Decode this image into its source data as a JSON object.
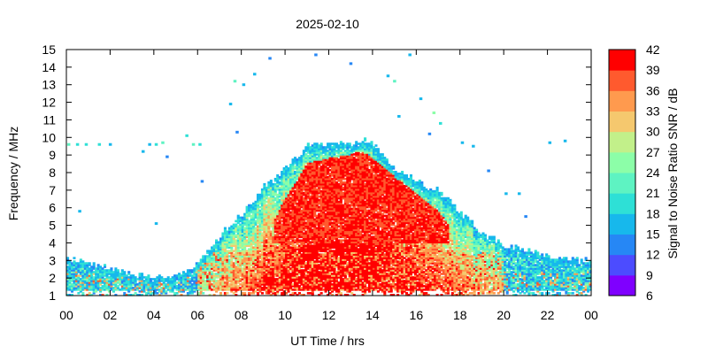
{
  "chart_data": {
    "type": "heatmap",
    "title": "2025-02-10",
    "xlabel": "UT Time / hrs",
    "ylabel": "Frequency / MHz",
    "x_ticks": [
      "00",
      "02",
      "04",
      "06",
      "08",
      "10",
      "12",
      "14",
      "16",
      "18",
      "20",
      "22",
      "00"
    ],
    "xlim": [
      0,
      24
    ],
    "y_ticks": [
      1,
      2,
      3,
      4,
      5,
      6,
      7,
      8,
      9,
      10,
      11,
      12,
      13,
      14,
      15
    ],
    "ylim": [
      1,
      15
    ],
    "colorbar": {
      "label": "Signal to Noise Ratio SNR / dB",
      "ticks": [
        6,
        9,
        12,
        15,
        18,
        21,
        24,
        27,
        30,
        33,
        36,
        39,
        42
      ],
      "range": [
        6,
        42
      ],
      "colors": [
        "#7f00ff",
        "#4c4cff",
        "#2687f5",
        "#17b8ec",
        "#2ee0d6",
        "#5ef3c2",
        "#8cfea8",
        "#c2f08a",
        "#f5c86e",
        "#ff9a4e",
        "#ff5a2e",
        "#ff0000"
      ]
    },
    "envelope_upper_mhz": [
      [
        0.0,
        3.1
      ],
      [
        1.0,
        2.8
      ],
      [
        2.0,
        2.5
      ],
      [
        3.0,
        2.2
      ],
      [
        4.0,
        2.0
      ],
      [
        5.0,
        2.0
      ],
      [
        5.5,
        2.3
      ],
      [
        6.0,
        2.8
      ],
      [
        6.5,
        3.6
      ],
      [
        7.0,
        4.3
      ],
      [
        7.5,
        5.0
      ],
      [
        8.0,
        5.6
      ],
      [
        8.5,
        6.2
      ],
      [
        9.0,
        7.1
      ],
      [
        9.5,
        7.6
      ],
      [
        10.0,
        8.2
      ],
      [
        10.5,
        8.8
      ],
      [
        11.0,
        9.5
      ],
      [
        12.0,
        9.6
      ],
      [
        13.0,
        9.5
      ],
      [
        13.5,
        9.8
      ],
      [
        14.0,
        9.6
      ],
      [
        14.5,
        8.9
      ],
      [
        15.0,
        8.2
      ],
      [
        15.5,
        7.9
      ],
      [
        16.0,
        7.6
      ],
      [
        16.5,
        7.2
      ],
      [
        17.0,
        7.0
      ],
      [
        17.5,
        6.4
      ],
      [
        18.0,
        5.7
      ],
      [
        18.5,
        5.2
      ],
      [
        19.0,
        4.5
      ],
      [
        19.5,
        4.2
      ],
      [
        20.0,
        3.8
      ],
      [
        21.0,
        3.6
      ],
      [
        22.0,
        3.2
      ],
      [
        23.0,
        3.0
      ],
      [
        24.0,
        3.0
      ]
    ],
    "core_region_upper_mhz": [
      [
        9.5,
        5.2
      ],
      [
        10.0,
        6.5
      ],
      [
        10.5,
        7.5
      ],
      [
        11.0,
        8.5
      ],
      [
        12.0,
        8.8
      ],
      [
        13.0,
        9.0
      ],
      [
        13.5,
        9.2
      ],
      [
        14.0,
        8.8
      ],
      [
        15.0,
        7.8
      ],
      [
        16.0,
        6.8
      ],
      [
        17.0,
        5.8
      ],
      [
        17.5,
        5.0
      ]
    ],
    "sporadic_points": [
      [
        0.1,
        9.6,
        21
      ],
      [
        0.5,
        9.6,
        20
      ],
      [
        0.9,
        9.6,
        19
      ],
      [
        1.5,
        9.6,
        18
      ],
      [
        2.0,
        9.6,
        17
      ],
      [
        3.8,
        9.6,
        17
      ],
      [
        4.1,
        9.6,
        18
      ],
      [
        4.4,
        9.7,
        21
      ],
      [
        5.5,
        10.1,
        19
      ],
      [
        5.8,
        9.6,
        22
      ],
      [
        6.1,
        9.6,
        20
      ],
      [
        3.5,
        9.2,
        15
      ],
      [
        4.6,
        8.9,
        14
      ],
      [
        0.6,
        5.8,
        15
      ],
      [
        4.1,
        5.1,
        15
      ],
      [
        6.2,
        7.5,
        14
      ],
      [
        7.7,
        13.2,
        21
      ],
      [
        8.1,
        13.0,
        16
      ],
      [
        8.6,
        13.6,
        15
      ],
      [
        7.8,
        10.3,
        14
      ],
      [
        7.5,
        11.9,
        15
      ],
      [
        9.3,
        14.5,
        13
      ],
      [
        11.4,
        14.7,
        14
      ],
      [
        14.7,
        13.5,
        16
      ],
      [
        15.0,
        13.2,
        21
      ],
      [
        15.7,
        14.7,
        16
      ],
      [
        16.2,
        12.2,
        15
      ],
      [
        16.8,
        11.4,
        24
      ],
      [
        17.1,
        10.8,
        18
      ],
      [
        15.2,
        11.2,
        15
      ],
      [
        16.6,
        10.2,
        13
      ],
      [
        18.1,
        9.7,
        15
      ],
      [
        18.6,
        9.5,
        17
      ],
      [
        19.3,
        8.1,
        13
      ],
      [
        20.1,
        6.8,
        16
      ],
      [
        20.7,
        6.8,
        15
      ],
      [
        21.0,
        5.5,
        14
      ],
      [
        22.1,
        9.7,
        17
      ],
      [
        22.8,
        9.8,
        15
      ],
      [
        13.0,
        14.2,
        14
      ]
    ]
  }
}
